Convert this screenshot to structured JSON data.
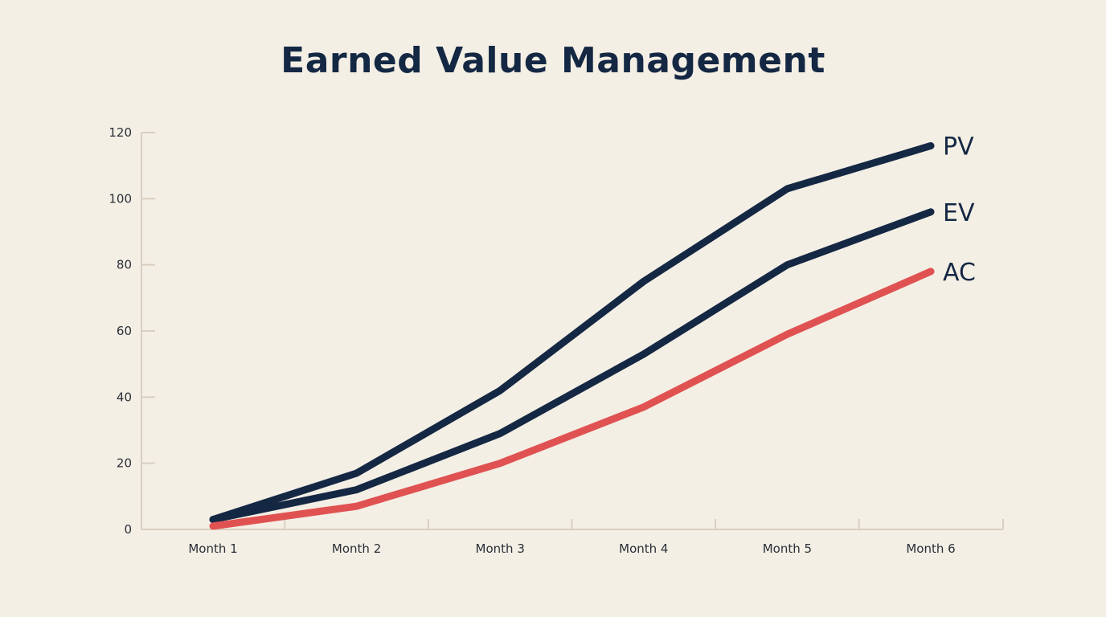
{
  "chart_data": {
    "type": "line",
    "title": "Earned Value Management",
    "xlabel": "",
    "ylabel": "",
    "categories": [
      "Month 1",
      "Month 2",
      "Month 3",
      "Month 4",
      "Month 5",
      "Month 6"
    ],
    "ylim": [
      0,
      120
    ],
    "yticks": [
      0,
      20,
      40,
      60,
      80,
      100,
      120
    ],
    "grid": false,
    "legend": "inline labels at end of lines",
    "series": [
      {
        "name": "PV",
        "color": "#142844",
        "values": [
          3,
          17,
          42,
          75,
          103,
          116
        ]
      },
      {
        "name": "EV",
        "color": "#142844",
        "values": [
          3,
          12,
          29,
          53,
          80,
          96
        ]
      },
      {
        "name": "AC",
        "color": "#e05252",
        "values": [
          1,
          7,
          20,
          37,
          59,
          78
        ]
      }
    ]
  },
  "colors": {
    "background": "#f4efe5",
    "axis": "#d8cfbf",
    "title": "#142844"
  }
}
